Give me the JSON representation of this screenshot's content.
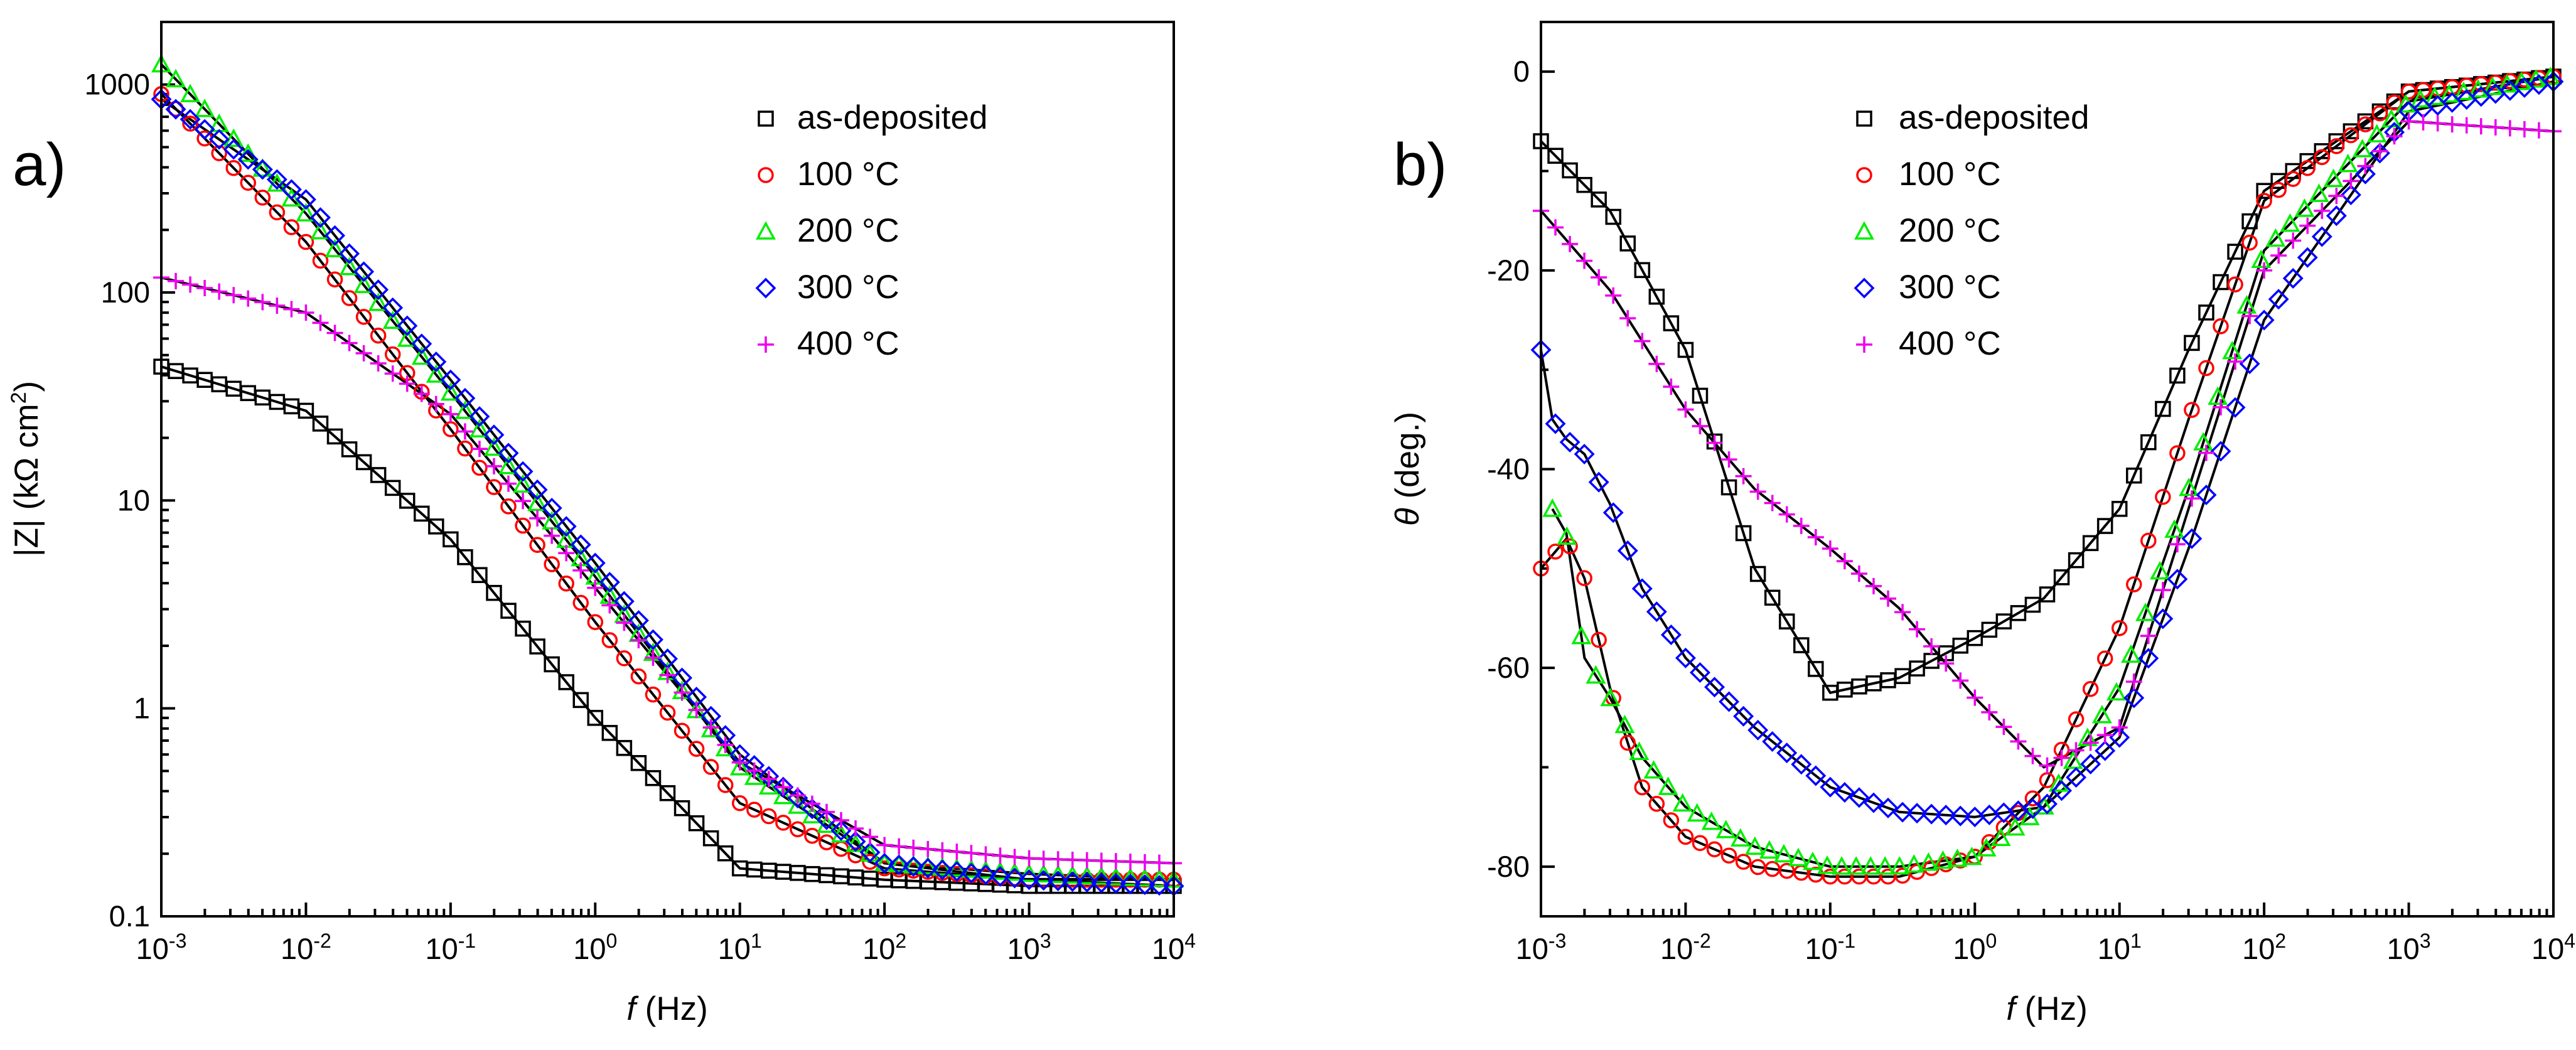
{
  "chart_data": [
    {
      "type": "scatter",
      "panel_label": "a)",
      "title": "",
      "xlabel_italic": "f",
      "xlabel_unit": " (Hz)",
      "ylabel": "|Z| (kΩ cm",
      "ylabel_sup": "2",
      "ylabel_end": ")",
      "xscale": "log",
      "yscale": "log",
      "xlim": [
        0.001,
        10000
      ],
      "ylim": [
        0.1,
        2000
      ],
      "x_ticks": [
        {
          "base": "10",
          "exp": "-3"
        },
        {
          "base": "10",
          "exp": "-2"
        },
        {
          "base": "10",
          "exp": "-1"
        },
        {
          "base": "10",
          "exp": "0"
        },
        {
          "base": "10",
          "exp": "1"
        },
        {
          "base": "10",
          "exp": "2"
        },
        {
          "base": "10",
          "exp": "3"
        },
        {
          "base": "10",
          "exp": "4"
        }
      ],
      "y_tick_labels": [
        "0.1",
        "1",
        "10",
        "100",
        "1000"
      ],
      "legend_position": "top-right",
      "fit_lines": "solid black fitted curves through each series",
      "series": [
        {
          "name": "as-deposited",
          "marker": "square",
          "color": "#000000",
          "x": [
            0.001,
            0.01,
            0.1,
            1,
            10,
            100,
            1000,
            10000
          ],
          "y": [
            44,
            27,
            6.5,
            0.9,
            0.17,
            0.15,
            0.14,
            0.14
          ]
        },
        {
          "name": "100 °C",
          "marker": "circle",
          "color": "#ff0000",
          "x": [
            0.001,
            0.01,
            0.1,
            1,
            10,
            100,
            1000,
            10000
          ],
          "y": [
            900,
            175,
            22,
            2.6,
            0.35,
            0.17,
            0.15,
            0.15
          ]
        },
        {
          "name": "200 °C",
          "marker": "triangle",
          "color": "#00ee00",
          "x": [
            0.001,
            0.01,
            0.1,
            1,
            10,
            100,
            1000,
            10000
          ],
          "y": [
            1250,
            240,
            33,
            4.3,
            0.52,
            0.18,
            0.16,
            0.15
          ]
        },
        {
          "name": "300 °C",
          "marker": "diamond",
          "color": "#0000ff",
          "x": [
            0.001,
            0.01,
            0.1,
            1,
            10,
            100,
            1000,
            10000
          ],
          "y": [
            850,
            280,
            38,
            5,
            0.6,
            0.18,
            0.15,
            0.14
          ]
        },
        {
          "name": "400 °C",
          "marker": "plus",
          "color": "#ee00ee",
          "x": [
            0.001,
            0.01,
            0.1,
            1,
            10,
            100,
            1000,
            10000
          ],
          "y": [
            118,
            80,
            26,
            3.8,
            0.55,
            0.22,
            0.19,
            0.18
          ]
        }
      ]
    },
    {
      "type": "scatter",
      "panel_label": "b)",
      "title": "",
      "xlabel_italic": "f",
      "xlabel_unit": " (Hz)",
      "ylabel_italic": "θ",
      "ylabel": " (deg.)",
      "xscale": "log",
      "yscale": "linear",
      "xlim": [
        0.001,
        10000
      ],
      "ylim": [
        -85,
        5
      ],
      "x_ticks": [
        {
          "base": "10",
          "exp": "-3"
        },
        {
          "base": "10",
          "exp": "-2"
        },
        {
          "base": "10",
          "exp": "-1"
        },
        {
          "base": "10",
          "exp": "0"
        },
        {
          "base": "10",
          "exp": "1"
        },
        {
          "base": "10",
          "exp": "2"
        },
        {
          "base": "10",
          "exp": "3"
        },
        {
          "base": "10",
          "exp": "4"
        }
      ],
      "y_tick_labels": [
        "0",
        "-20",
        "-40",
        "-60",
        "-80"
      ],
      "legend_position": "top-left",
      "fit_lines": "solid black fitted curves through each series",
      "series": [
        {
          "name": "as-deposited",
          "marker": "square",
          "color": "#000000",
          "x": [
            0.001,
            0.003,
            0.01,
            0.03,
            0.1,
            0.3,
            1,
            3,
            10,
            30,
            100,
            1000,
            10000
          ],
          "y": [
            -7,
            -14,
            -28,
            -50,
            -62.5,
            -61,
            -57,
            -53,
            -44,
            -28,
            -12,
            -2,
            -0.5
          ]
        },
        {
          "name": "100 °C",
          "marker": "circle",
          "color": "#ff0000",
          "x": [
            0.001,
            0.0015,
            0.002,
            0.003,
            0.005,
            0.01,
            0.03,
            0.1,
            0.3,
            1,
            3,
            10,
            30,
            100,
            1000,
            10000
          ],
          "y": [
            -50,
            -47,
            -51,
            -62,
            -72,
            -77,
            -80,
            -81,
            -81,
            -79,
            -72,
            -56,
            -35,
            -13,
            -2,
            -0.5
          ]
        },
        {
          "name": "200 °C",
          "marker": "triangle",
          "color": "#00ee00",
          "x": [
            0.0012,
            0.0015,
            0.002,
            0.003,
            0.005,
            0.01,
            0.03,
            0.1,
            0.3,
            1,
            3,
            10,
            30,
            100,
            1000,
            10000
          ],
          "y": [
            -44,
            -46.5,
            -59,
            -63,
            -69,
            -74,
            -78,
            -80,
            -80,
            -79,
            -74,
            -62,
            -42,
            -18,
            -3,
            -0.5
          ]
        },
        {
          "name": "300 °C",
          "marker": "diamond",
          "color": "#0000ff",
          "x": [
            0.001,
            0.0012,
            0.0015,
            0.002,
            0.003,
            0.005,
            0.01,
            0.03,
            0.1,
            0.3,
            1,
            3,
            10,
            30,
            100,
            1000,
            10000
          ],
          "y": [
            -28,
            -35,
            -37,
            -38.5,
            -43.5,
            -52,
            -59,
            -66,
            -72,
            -74.5,
            -75,
            -74,
            -67,
            -48,
            -25,
            -4,
            -1
          ]
        },
        {
          "name": "400 °C",
          "marker": "plus",
          "color": "#ee00ee",
          "x": [
            0.001,
            0.003,
            0.01,
            0.03,
            0.1,
            0.3,
            1,
            3,
            10,
            30,
            100,
            1000,
            10000
          ],
          "y": [
            -14,
            -22,
            -34,
            -42,
            -48,
            -54,
            -63,
            -70,
            -66,
            -44,
            -20,
            -5,
            -6
          ]
        }
      ]
    }
  ]
}
